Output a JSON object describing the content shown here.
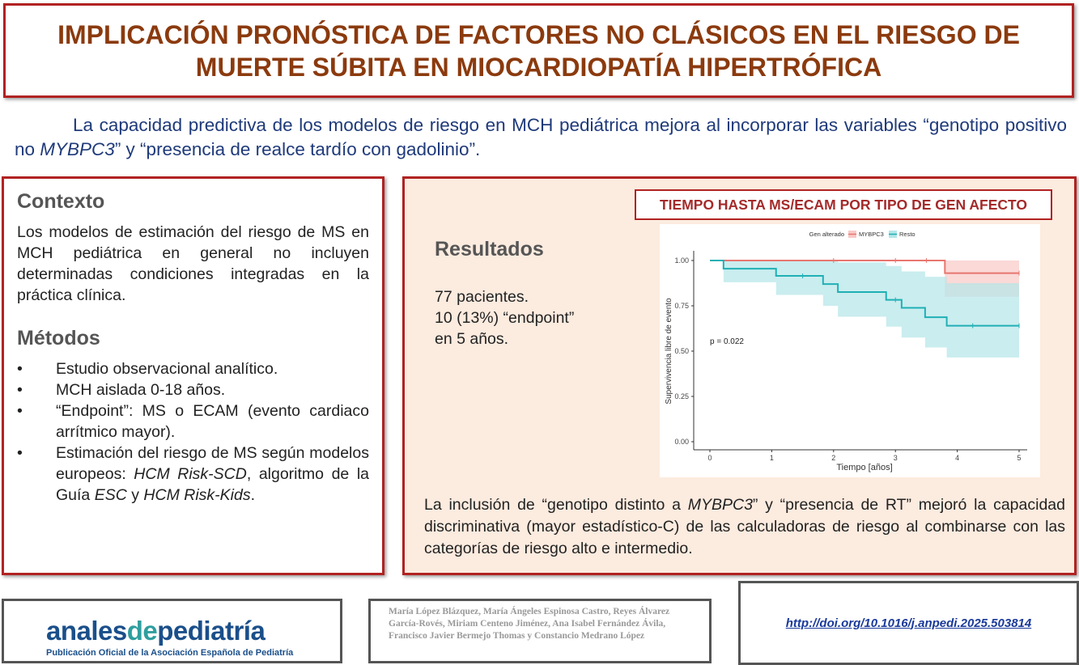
{
  "title": "IMPLICACIÓN PRONÓSTICA DE FACTORES NO CLÁSICOS EN EL RIESGO DE MUERTE SÚBITA EN MIOCARDIOPATÍA HIPERTRÓFICA",
  "summary": {
    "part1": "La capacidad predictiva de los modelos de riesgo en MCH pediátrica mejora al incorporar las variables “genotipo positivo no ",
    "italic1": "MYBPC3",
    "part2": "” y “presencia de realce tardío con gadolinio”."
  },
  "context": {
    "heading": "Contexto",
    "text": "Los modelos de estimación del riesgo de MS en MCH pediátrica en general no incluyen determinadas condiciones integradas en la práctica clínica."
  },
  "methods": {
    "heading": "Métodos",
    "items": [
      "Estudio observacional analítico.",
      "MCH aislada 0-18 años.",
      "“Endpoint”: MS o ECAM (evento cardiaco arrítmico mayor)."
    ],
    "item4": {
      "a": "Estimación del riesgo de MS según modelos europeos: ",
      "b": "HCM Risk-SCD",
      "c": ", algoritmo de la Guía ",
      "d": "ESC",
      "e": " y ",
      "f": "HCM Risk-Kids",
      "g": "."
    }
  },
  "results": {
    "heading": "Resultados",
    "lines": [
      "77 pacientes.",
      "10 (13%) “endpoint”",
      "en 5 años."
    ],
    "footer": {
      "a": "La inclusión de “genotipo distinto a ",
      "b": "MYBPC3",
      "c": "” y “presencia de RT” mejoró la capacidad discriminativa (mayor estadístico-C) de las calculadoras de riesgo al combinarse con las categorías de riesgo alto e intermedio."
    }
  },
  "chart_title": "TIEMPO HASTA MS/ECAM POR TIPO DE GEN AFECTO",
  "chart_data": {
    "type": "line",
    "subtype": "kaplan-meier step",
    "xlabel": "Tiempo [años]",
    "ylabel": "Supervivencia libre de evento",
    "xlim": [
      0,
      5
    ],
    "ylim": [
      0,
      1
    ],
    "xticks": [
      "0",
      "1",
      "2",
      "3",
      "4",
      "5"
    ],
    "yticks": [
      "0.00",
      "0.25",
      "0.50",
      "0.75",
      "1.00"
    ],
    "legend_title": "Gen alterado",
    "legend_position": "top",
    "annotation": "p = 0.022",
    "grid": false,
    "series": [
      {
        "name": "MYBPC3",
        "color": "#e8766f",
        "fill": "#f8c9c6",
        "steps": [
          [
            0,
            1
          ],
          [
            3.8,
            0.93
          ],
          [
            5,
            0.93
          ]
        ],
        "ci_lower": [
          [
            0,
            1
          ],
          [
            3.8,
            0.8
          ],
          [
            5,
            0.8
          ]
        ],
        "ci_upper": [
          [
            0,
            1
          ],
          [
            3.8,
            1
          ],
          [
            5,
            1
          ]
        ],
        "censor": [
          2,
          3,
          3.5,
          5
        ]
      },
      {
        "name": "Resto",
        "color": "#1fb0b5",
        "fill": "#b4e6e8",
        "steps": [
          [
            0,
            1
          ],
          [
            0.22,
            0.955
          ],
          [
            1.07,
            0.915
          ],
          [
            1.83,
            0.87
          ],
          [
            2.07,
            0.826
          ],
          [
            2.85,
            0.783
          ],
          [
            3.1,
            0.739
          ],
          [
            3.48,
            0.687
          ],
          [
            3.83,
            0.64
          ],
          [
            5,
            0.64
          ]
        ],
        "ci_lower": [
          [
            0,
            1
          ],
          [
            0.22,
            0.88
          ],
          [
            1.07,
            0.81
          ],
          [
            1.83,
            0.75
          ],
          [
            2.07,
            0.69
          ],
          [
            2.85,
            0.635
          ],
          [
            3.1,
            0.575
          ],
          [
            3.48,
            0.52
          ],
          [
            3.83,
            0.465
          ],
          [
            5,
            0.465
          ]
        ],
        "ci_upper": [
          [
            0,
            1
          ],
          [
            0.22,
            1
          ],
          [
            1.07,
            1
          ],
          [
            1.83,
            1
          ],
          [
            2.07,
            0.99
          ],
          [
            2.85,
            0.97
          ],
          [
            3.1,
            0.94
          ],
          [
            3.48,
            0.91
          ],
          [
            3.83,
            0.875
          ],
          [
            5,
            0.875
          ]
        ],
        "censor": [
          1.5,
          3,
          4.25,
          5
        ]
      }
    ]
  },
  "logo": {
    "text_a": "anales",
    "text_b": "de",
    "text_c": "pediatría",
    "subtitle": "Publicación Oficial de la Asociación Española de Pediatría"
  },
  "authors": "María López Blázquez, María Ángeles Espinosa Castro, Reyes Álvarez García-Rovés, Miriam Centeno Jiménez, Ana Isabel Fernández Ávila, Francisco Javier Bermejo Thomas y Constancio Medrano López",
  "doi": "http://doi.org/10.1016/j.anpedi.2025.503814"
}
